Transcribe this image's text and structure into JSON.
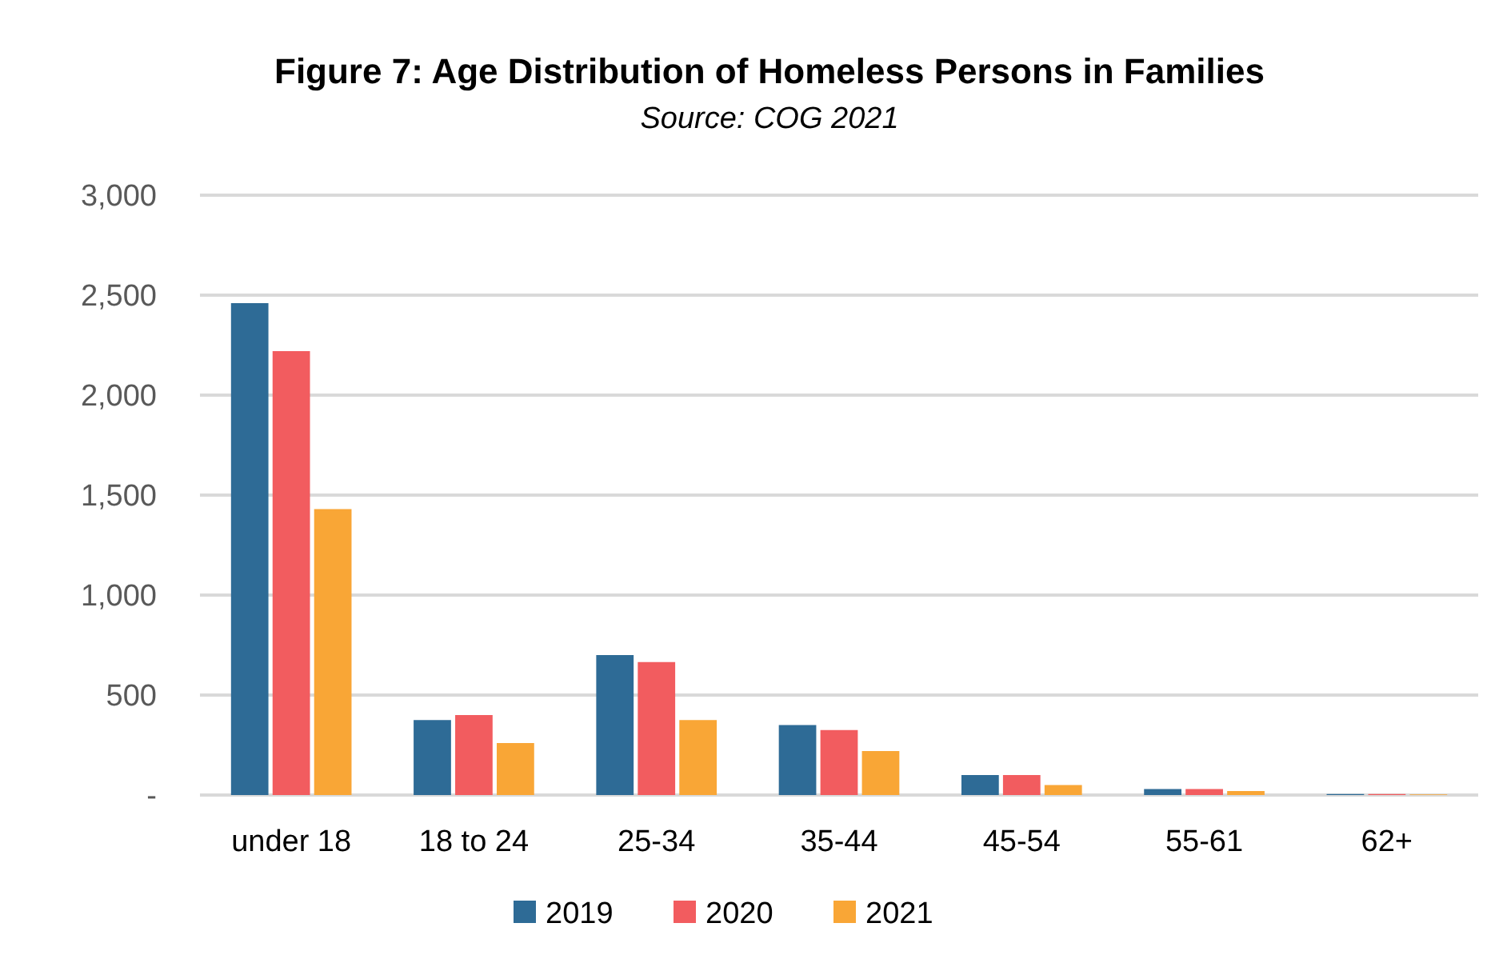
{
  "chart_data": {
    "type": "bar",
    "title": "Figure 7: Age Distribution of Homeless Persons in Families",
    "subtitle": "Source: COG 2021",
    "categories": [
      "under 18",
      "18 to 24",
      "25-34",
      "35-44",
      "45-54",
      "55-61",
      "62+"
    ],
    "series": [
      {
        "name": "2019",
        "color": "#2e6b96",
        "values": [
          2460,
          375,
          700,
          350,
          100,
          30,
          5
        ]
      },
      {
        "name": "2020",
        "color": "#f25c5f",
        "values": [
          2220,
          400,
          665,
          325,
          100,
          30,
          5
        ]
      },
      {
        "name": "2021",
        "color": "#f9a636",
        "values": [
          1430,
          260,
          375,
          220,
          50,
          20,
          3
        ]
      }
    ],
    "ylim": [
      0,
      3000
    ],
    "yticks": [
      {
        "value": 0,
        "label": "-"
      },
      500,
      {
        "value": 1000,
        "label": "1,000"
      },
      {
        "value": 1500,
        "label": "1,500"
      },
      {
        "value": 2000,
        "label": "2,000"
      },
      {
        "value": 2500,
        "label": "2,500"
      },
      {
        "value": 3000,
        "label": "3,000"
      }
    ],
    "grid": "y",
    "legend": "bottom"
  }
}
